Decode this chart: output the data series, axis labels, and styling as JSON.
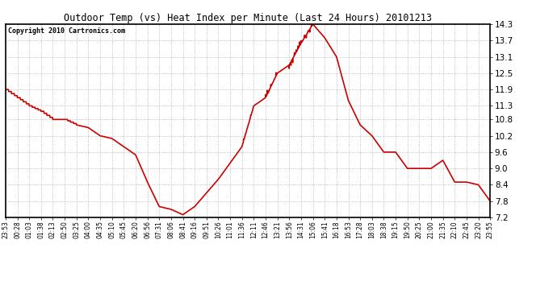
{
  "title": "Outdoor Temp (vs) Heat Index per Minute (Last 24 Hours) 20101213",
  "copyright": "Copyright 2010 Cartronics.com",
  "line_color": "#cc0000",
  "bg_color": "#ffffff",
  "plot_bg_color": "#ffffff",
  "grid_color": "#999999",
  "ylim": [
    7.2,
    14.3
  ],
  "yticks": [
    7.2,
    7.8,
    8.4,
    9.0,
    9.6,
    10.2,
    10.8,
    11.3,
    11.9,
    12.5,
    13.1,
    13.7,
    14.3
  ],
  "xtick_labels": [
    "23:53",
    "00:28",
    "01:03",
    "01:38",
    "02:13",
    "02:50",
    "03:25",
    "04:00",
    "04:35",
    "05:10",
    "05:45",
    "06:20",
    "06:56",
    "07:31",
    "08:06",
    "08:41",
    "09:16",
    "09:51",
    "10:26",
    "11:01",
    "11:36",
    "12:11",
    "12:46",
    "13:21",
    "13:56",
    "14:31",
    "15:06",
    "15:41",
    "16:18",
    "16:53",
    "17:28",
    "18:03",
    "18:38",
    "19:15",
    "19:50",
    "20:25",
    "21:00",
    "21:35",
    "22:10",
    "22:45",
    "23:20",
    "23:55"
  ],
  "y_values": [
    11.9,
    11.6,
    11.3,
    11.1,
    10.8,
    10.8,
    10.6,
    10.5,
    10.2,
    10.1,
    9.8,
    9.5,
    8.5,
    7.6,
    7.5,
    7.3,
    7.6,
    8.1,
    8.6,
    9.2,
    9.8,
    11.3,
    11.6,
    12.5,
    12.8,
    13.6,
    14.3,
    13.8,
    13.1,
    11.5,
    10.6,
    10.2,
    9.6,
    9.6,
    9.0,
    9.0,
    9.0,
    9.3,
    8.5,
    8.5,
    8.4,
    7.8
  ]
}
